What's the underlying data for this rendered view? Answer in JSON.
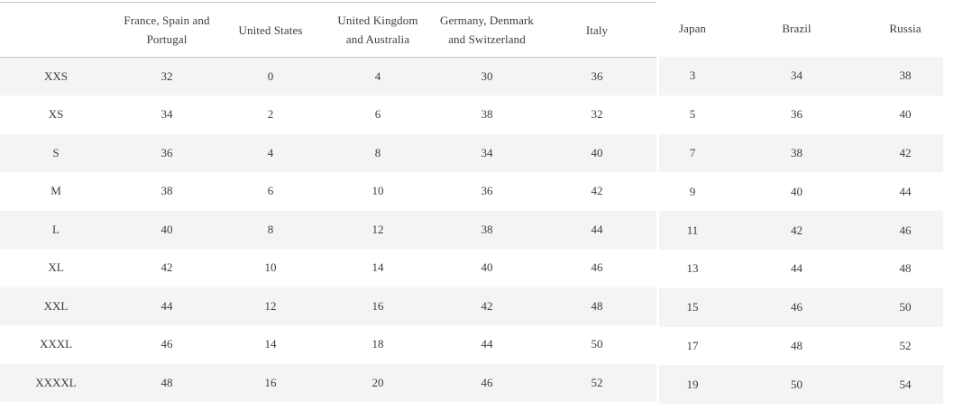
{
  "page": {
    "description_label": "clothing size conversion chart",
    "background_color": "#ffffff"
  },
  "colors": {
    "row_shaded": "#f4f4f4",
    "row_plain": "#ffffff",
    "header_border": "#c6c6c6",
    "text": "#3c3c3c"
  },
  "left_table": {
    "columns": [
      {
        "lines": [
          "",
          ""
        ]
      },
      {
        "lines": [
          "France, Spain and",
          "Portugal"
        ]
      },
      {
        "lines": [
          "United States",
          ""
        ]
      },
      {
        "lines": [
          "United Kingdom",
          "and Australia"
        ]
      },
      {
        "lines": [
          "Germany, Denmark",
          "and Switzerland"
        ]
      },
      {
        "lines": [
          "Italy",
          ""
        ]
      }
    ],
    "rows": [
      [
        "XXS",
        "32",
        "0",
        "4",
        "30",
        "36"
      ],
      [
        "XS",
        "34",
        "2",
        "6",
        "38",
        "32"
      ],
      [
        "S",
        "36",
        "4",
        "8",
        "34",
        "40"
      ],
      [
        "M",
        "38",
        "6",
        "10",
        "36",
        "42"
      ],
      [
        "L",
        "40",
        "8",
        "12",
        "38",
        "44"
      ],
      [
        "XL",
        "42",
        "10",
        "14",
        "40",
        "46"
      ],
      [
        "XXL",
        "44",
        "12",
        "16",
        "42",
        "48"
      ],
      [
        "XXXL",
        "46",
        "14",
        "18",
        "44",
        "50"
      ],
      [
        "XXXXL",
        "48",
        "16",
        "20",
        "46",
        "52"
      ]
    ]
  },
  "right_table": {
    "columns": [
      {
        "lines": [
          "Japan",
          ""
        ]
      },
      {
        "lines": [
          "Brazil",
          ""
        ]
      },
      {
        "lines": [
          "Russia",
          ""
        ]
      }
    ],
    "rows": [
      [
        "3",
        "34",
        "38"
      ],
      [
        "5",
        "36",
        "40"
      ],
      [
        "7",
        "38",
        "42"
      ],
      [
        "9",
        "40",
        "44"
      ],
      [
        "11",
        "42",
        "46"
      ],
      [
        "13",
        "44",
        "48"
      ],
      [
        "15",
        "46",
        "50"
      ],
      [
        "17",
        "48",
        "52"
      ],
      [
        "19",
        "50",
        "54"
      ]
    ]
  }
}
